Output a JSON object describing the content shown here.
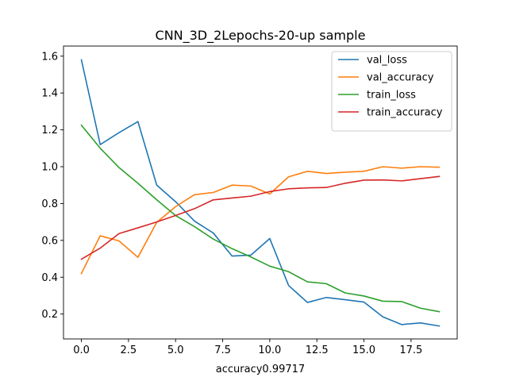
{
  "chart_data": {
    "type": "line",
    "title": "CNN_3D_2Lepochs-20-up sample",
    "xlabel": "accuracy0.99717",
    "ylabel": "",
    "x": [
      0,
      1,
      2,
      3,
      4,
      5,
      6,
      7,
      8,
      9,
      10,
      11,
      12,
      13,
      14,
      15,
      16,
      17,
      18,
      19
    ],
    "xlim": [
      -0.95,
      19.95
    ],
    "ylim": [
      0.065,
      1.655
    ],
    "xticks": [
      0.0,
      2.5,
      5.0,
      7.5,
      10.0,
      12.5,
      15.0,
      17.5
    ],
    "xtick_labels": [
      "0.0",
      "2.5",
      "5.0",
      "7.5",
      "10.0",
      "12.5",
      "15.0",
      "17.5"
    ],
    "yticks": [
      0.2,
      0.4,
      0.6,
      0.8,
      1.0,
      1.2,
      1.4,
      1.6
    ],
    "ytick_labels": [
      "0.2",
      "0.4",
      "0.6",
      "0.8",
      "1.0",
      "1.2",
      "1.4",
      "1.6"
    ],
    "grid": false,
    "legend_position": "top-right",
    "series": [
      {
        "name": "val_loss",
        "color": "#1f77b4",
        "values": [
          1.58,
          1.12,
          1.185,
          1.245,
          0.9,
          0.81,
          0.705,
          0.64,
          0.515,
          0.52,
          0.61,
          0.355,
          0.263,
          0.29,
          0.278,
          0.265,
          0.185,
          0.143,
          0.152,
          0.135
        ]
      },
      {
        "name": "val_accuracy",
        "color": "#ff7f0e",
        "values": [
          0.42,
          0.625,
          0.597,
          0.508,
          0.698,
          0.783,
          0.848,
          0.86,
          0.9,
          0.895,
          0.852,
          0.945,
          0.975,
          0.963,
          0.97,
          0.975,
          1.0,
          0.992,
          1.0,
          0.997
        ]
      },
      {
        "name": "train_loss",
        "color": "#2ca02c",
        "values": [
          1.225,
          1.1,
          0.995,
          0.91,
          0.82,
          0.735,
          0.675,
          0.607,
          0.555,
          0.51,
          0.46,
          0.43,
          0.375,
          0.365,
          0.315,
          0.298,
          0.27,
          0.268,
          0.232,
          0.213
        ]
      },
      {
        "name": "train_accuracy",
        "color": "#d62728",
        "values": [
          0.498,
          0.558,
          0.637,
          0.668,
          0.7,
          0.735,
          0.772,
          0.82,
          0.83,
          0.84,
          0.865,
          0.88,
          0.885,
          0.887,
          0.91,
          0.927,
          0.928,
          0.923,
          0.935,
          0.947
        ]
      }
    ]
  }
}
